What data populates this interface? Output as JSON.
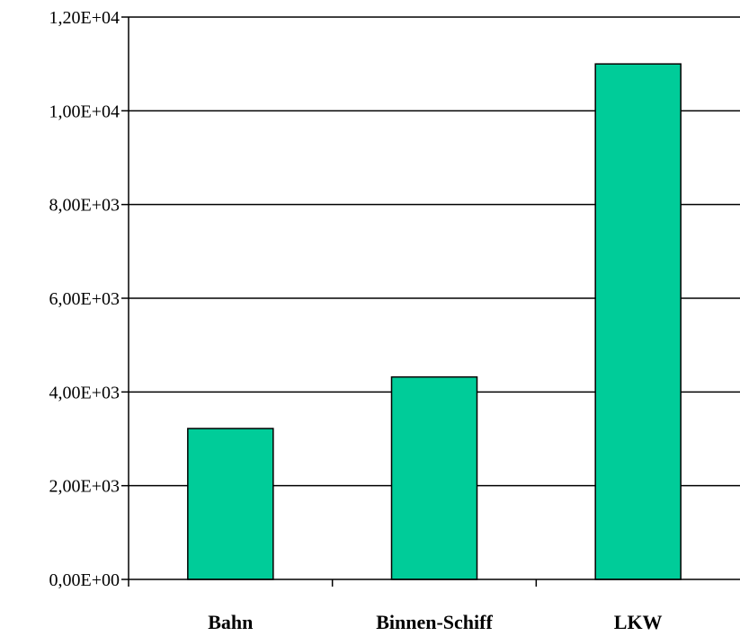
{
  "chart_data": {
    "type": "bar",
    "categories": [
      "Bahn",
      "Binnen-Schiff",
      "LKW"
    ],
    "values": [
      3220,
      4320,
      11000
    ],
    "ylim": [
      0,
      12000
    ],
    "yticks": [
      0,
      2000,
      4000,
      6000,
      8000,
      10000,
      12000
    ],
    "ytick_labels": [
      "0,00E+00",
      "2,00E+03",
      "4,00E+03",
      "6,00E+03",
      "8,00E+03",
      "1,00E+04",
      "1,20E+04"
    ],
    "grid": true,
    "legend": "none",
    "bar_color": "#00CC99"
  }
}
